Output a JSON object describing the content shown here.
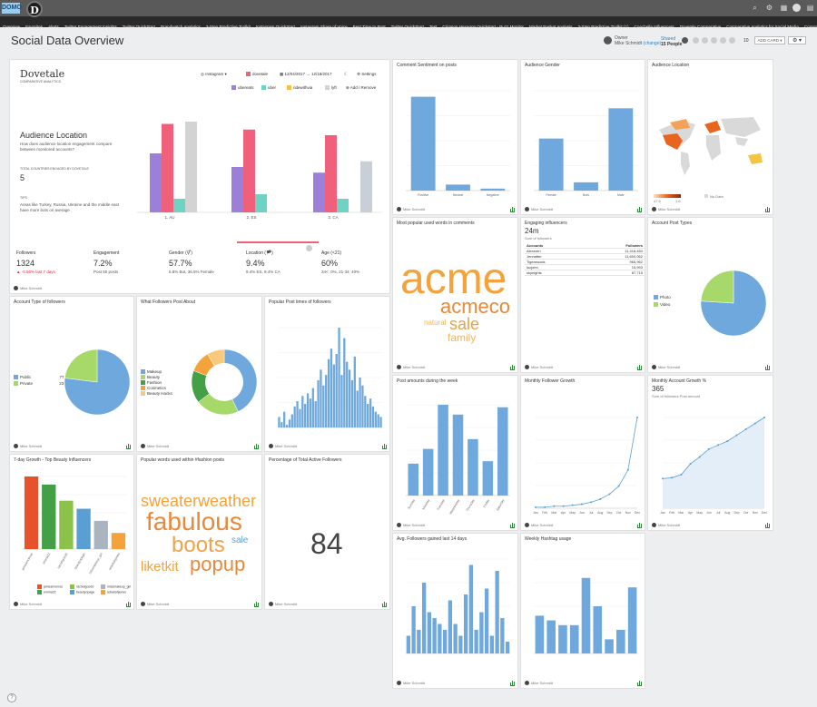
{
  "app": {
    "brand": "DOMO",
    "page_title": "Social Data Overview",
    "help": "?"
  },
  "nav": [
    "Overview",
    "Favorites",
    "Alerts",
    "Twitter Engagement Insights",
    "Twitter QuickStart",
    "Brandwatch Analytics",
    "3-Step Predictive Toolkit",
    "Instagram QuickStart",
    "Instagram Share of Voice",
    "Best Time to Post",
    "Twitter QuickStart",
    "Test",
    "Crimson Hexagon Quickstart - Buzz Monitor",
    "Market Basket Analysis",
    "3-Step Predictive Toolkit (1)",
    "Coachella Influencers",
    "Dovetale Comparative",
    "Comparative Analytics for Social Media",
    "Comparative Analytics for Social Media (1)"
  ],
  "nav_more": "More",
  "header": {
    "owner_label": "Owner",
    "owner_name": "Mike Schmidt",
    "change": "(change)",
    "shared": "Shared",
    "people": "15 People",
    "count": "10",
    "add_card": "ADD CARD ▾",
    "wrench": "⚙ ▾"
  },
  "user": "Mike Schmidt",
  "dovetale": {
    "logo": "Dovetale",
    "tag": "COMPARATIVE ANALYTICS",
    "platform": "Instagram ▾",
    "account": "dovetale",
    "dates": "12/04/2017 → 12/18/2017",
    "settings": "Settings",
    "compare": [
      "ubereats",
      "uber",
      "ridewithvia",
      "lyft"
    ],
    "add_remove": "Add / Remove",
    "heading": "Audience Location",
    "desc": "How does audience location engagement compare between monitored accounts?",
    "countries_label": "TOTAL COUNTRIES ENGAGED BY DOVETALE",
    "countries": "5",
    "tips_label": "TIPS",
    "tip": "Areas like Turkey, Russia, Ukraine and the middle east have more bots on average",
    "stats": [
      {
        "label": "Followers",
        "value": "1324",
        "sub": "▲ -0.56% last 7 days"
      },
      {
        "label": "Engagement",
        "value": "7.2%",
        "sub": "Post 50 posts"
      },
      {
        "label": "Gender (⚥)",
        "value": "57.7%",
        "sub": "5.8% Bot, 36.5% Female"
      },
      {
        "label": "Location (🏴)",
        "value": "9.4%",
        "sub": "9.4% ES, 9.4% CA"
      },
      {
        "label": "Age (<21)",
        "value": "60%",
        "sub": "34<: 0%, 21-34: 40%"
      }
    ],
    "footer": "Mike Schmidt"
  },
  "cards": {
    "sentiment": {
      "title": "Comment Sentiment on posts"
    },
    "gender": {
      "title": "Audience Gender"
    },
    "location": {
      "title": "Audience Location",
      "no_data": "No Data",
      "low": "47.6",
      "high": "1.6"
    },
    "words": {
      "title": "Most popular used words in comments"
    },
    "influencers": {
      "title": "Engaging influencers",
      "value": "24m",
      "sub": "Sum of followers",
      "col1": "Accounts",
      "col2": "Followers",
      "rows": [
        [
          "Alexsren",
          "11,418,454"
        ],
        [
          "Jennafter",
          "11,600,062"
        ],
        [
          "Tigerwoods",
          "965,962"
        ],
        [
          "lucjohn",
          "15,993"
        ],
        [
          "skyeights",
          "87,715"
        ]
      ]
    },
    "post_types": {
      "title": "Account Post Types",
      "legend": [
        "Photo",
        "Video"
      ]
    },
    "account_type": {
      "title": "Account Type of followers",
      "legend": [
        "Public",
        "Private"
      ],
      "values": [
        "77",
        "23"
      ]
    },
    "followers_about": {
      "title": "What Followers Post About",
      "legend": [
        "Makeup",
        "Beauty",
        "Fashion",
        "Cosmetics",
        "Beauty Hacks"
      ],
      "values": [
        "40",
        "20",
        "15",
        "10",
        "8"
      ]
    },
    "post_times": {
      "title": "Popular Post times of followers"
    },
    "post_amounts": {
      "title": "Post amounts during the week"
    },
    "monthly_growth": {
      "title": "Monthly Follower Growth"
    },
    "monthly_pct": {
      "title": "Monthly Account Growth %",
      "value": "365",
      "sub": "Sum of followers Post amount"
    },
    "beauty": {
      "title": "7-day Growth - Top Beauty Influencers"
    },
    "fashion_words": {
      "title": "Popular words used within #fashion posts"
    },
    "active": {
      "title": "Percentage of Total Active Followers",
      "value": "84"
    },
    "avg_followers": {
      "title": "Avg. Followers gained last 14 days"
    },
    "hashtag": {
      "title": "Weekly Hashtag usage"
    }
  },
  "words_comments": [
    "acme",
    "acmeco",
    "sale",
    "natural",
    "family"
  ],
  "words_fashion": [
    "sweaterweather",
    "fabulous",
    "boots",
    "sale",
    "liketkit",
    "popup"
  ],
  "beauty_legend": [
    "jamesmonroe",
    "emma22",
    "rachelgoodd",
    "beautyopage",
    "missmakeup_girl",
    "rebekahjones"
  ],
  "chart_data": [
    {
      "type": "bar",
      "title": "Audience Location",
      "categories": [
        "1. AU",
        "2. ES",
        "3. CA"
      ],
      "series": [
        {
          "name": "ubereats",
          "values": [
            52,
            40,
            35
          ]
        },
        {
          "name": "uber",
          "values": [
            78,
            73,
            68
          ]
        },
        {
          "name": "ridewithvia",
          "values": [
            12,
            16,
            12
          ]
        },
        {
          "name": "lyft",
          "values": [
            80,
            0,
            0
          ]
        },
        {
          "name": "dovetale",
          "values": [
            0,
            0,
            45
          ]
        }
      ],
      "colors": [
        "#9b7fd8",
        "#f0607a",
        "#6fd3c4",
        "#d3d3d3",
        "#c8cfd6"
      ]
    },
    {
      "type": "bar",
      "title": "Comment Sentiment on posts",
      "categories": [
        "Positive",
        "Neutral",
        "Negative"
      ],
      "values": [
        94,
        6,
        2
      ],
      "ylim": [
        0,
        100
      ]
    },
    {
      "type": "bar",
      "title": "Audience Gender",
      "categories": [
        "Female",
        "Bots",
        "Male"
      ],
      "values": [
        36.5,
        5.8,
        57.7
      ],
      "ylim": [
        0,
        70
      ]
    },
    {
      "type": "pie",
      "title": "Account Post Types",
      "categories": [
        "Photo",
        "Video"
      ],
      "values": [
        76,
        24
      ]
    },
    {
      "type": "pie",
      "title": "Account Type of followers",
      "categories": [
        "Public",
        "Private"
      ],
      "values": [
        77,
        23
      ]
    },
    {
      "type": "pie",
      "title": "What Followers Post About",
      "categories": [
        "Makeup",
        "Beauty",
        "Fashion",
        "Cosmetics",
        "Beauty Hacks"
      ],
      "values": [
        40,
        20,
        15,
        10,
        8
      ]
    },
    {
      "type": "bar",
      "title": "Popular Post times of followers",
      "values": [
        4,
        2,
        6,
        1,
        3,
        5,
        8,
        10,
        7,
        12,
        9,
        13,
        11,
        15,
        10,
        18,
        22,
        16,
        20,
        26,
        30,
        24,
        28,
        38,
        20,
        34,
        25,
        22,
        18,
        27,
        14,
        19,
        16,
        12,
        9,
        11,
        8,
        6,
        5,
        4
      ]
    },
    {
      "type": "bar",
      "title": "Post amounts during the week",
      "categories": [
        "Sunday",
        "Monday",
        "Tuesday",
        "Wednesday",
        "Thursday",
        "Friday",
        "Saturday"
      ],
      "values": [
        26,
        38,
        74,
        66,
        46,
        28,
        72
      ]
    },
    {
      "type": "line",
      "title": "Monthly Follower Growth",
      "x": [
        "Jan",
        "Feb",
        "Mar",
        "Apr",
        "May",
        "Jun",
        "Jul",
        "Aug",
        "Sep",
        "Oct",
        "Nov",
        "Dec"
      ],
      "values": [
        1,
        1,
        2,
        2,
        3,
        4,
        6,
        9,
        14,
        22,
        38,
        90
      ]
    },
    {
      "type": "line",
      "title": "Monthly Account Growth %",
      "x": [
        "Jan",
        "Feb",
        "Mar",
        "Apr",
        "May",
        "Jun",
        "Jul",
        "Aug",
        "Sep",
        "Oct",
        "Nov",
        "Dec"
      ],
      "values": [
        30,
        31,
        34,
        45,
        52,
        60,
        64,
        68,
        74,
        80,
        86,
        92
      ]
    },
    {
      "type": "bar",
      "title": "7-day Growth - Top Beauty Influencers",
      "categories": [
        "jamesmonroe",
        "emma22",
        "rachelgoodd",
        "beautyopage",
        "missmakeup_girl",
        "rebekahjones"
      ],
      "values": [
        9,
        8,
        6,
        5,
        3.5,
        2
      ],
      "colors": [
        "#e8522b",
        "#43a047",
        "#8bc34a",
        "#5a9fd4",
        "#aab4c0",
        "#f5a23b"
      ]
    },
    {
      "type": "bar",
      "title": "Avg. Followers gained last 14 days",
      "values": [
        3,
        8,
        4,
        12,
        7,
        6,
        5,
        4,
        9,
        5,
        3,
        10,
        15,
        4,
        7,
        11,
        3,
        14,
        6,
        2
      ],
      "ylim": [
        0,
        16
      ]
    },
    {
      "type": "bar",
      "title": "Weekly Hashtag usage",
      "values": [
        8,
        7,
        6,
        6,
        16,
        10,
        3,
        5,
        14
      ],
      "ylim": [
        0,
        20
      ]
    }
  ]
}
